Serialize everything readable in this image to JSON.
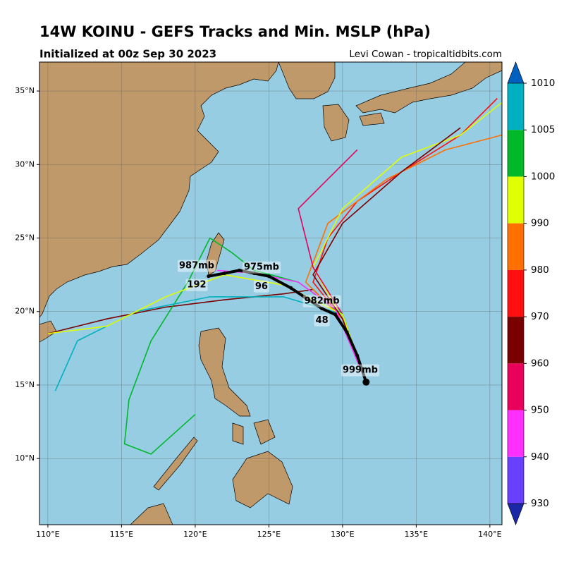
{
  "header": {
    "title": "14W KOINU - GEFS Tracks and Min. MSLP (hPa)",
    "subtitle": "Initialized at 00z Sep 30 2023",
    "credit": "Levi Cowan - tropicaltidbits.com"
  },
  "map": {
    "lonlim": [
      109.43,
      140.82
    ],
    "latlim": [
      5.5,
      36.97
    ],
    "xticks": [
      {
        "value": 110,
        "label": "110°E"
      },
      {
        "value": 115,
        "label": "115°E"
      },
      {
        "value": 120,
        "label": "120°E"
      },
      {
        "value": 125,
        "label": "125°E"
      },
      {
        "value": 130,
        "label": "130°E"
      },
      {
        "value": 135,
        "label": "135°E"
      },
      {
        "value": 140,
        "label": "140°E"
      }
    ],
    "yticks": [
      {
        "value": 10,
        "label": "10°N"
      },
      {
        "value": 15,
        "label": "15°N"
      },
      {
        "value": 20,
        "label": "20°N"
      },
      {
        "value": 25,
        "label": "25°N"
      },
      {
        "value": 30,
        "label": "30°N"
      },
      {
        "value": 35,
        "label": "35°N"
      }
    ],
    "main_track": {
      "color": "#000000",
      "lon": [
        131.6,
        131.0,
        130.3,
        129.5,
        128.6,
        127.4,
        126.5,
        125.0,
        124.0,
        123.0,
        122.0,
        120.9
      ],
      "lat": [
        15.2,
        17.0,
        18.6,
        19.8,
        20.2,
        21.0,
        21.6,
        22.4,
        22.6,
        22.8,
        22.6,
        22.4
      ]
    },
    "labels": [
      {
        "text": "999mb",
        "lon": 131.2,
        "lat": 16.0
      },
      {
        "text": "48",
        "lon": 128.6,
        "lat": 19.4
      },
      {
        "text": "982mb",
        "lon": 128.6,
        "lat": 20.7
      },
      {
        "text": "96",
        "lon": 124.5,
        "lat": 21.7
      },
      {
        "text": "975mb",
        "lon": 124.5,
        "lat": 23.0
      },
      {
        "text": "192",
        "lon": 120.1,
        "lat": 21.8
      },
      {
        "text": "987mb",
        "lon": 120.1,
        "lat": 23.1
      }
    ],
    "ensemble": [
      {
        "color": "#7a0000",
        "lon": [
          131.6,
          130.0,
          128.0,
          126.0,
          122.0,
          118.0,
          114.0,
          110.0
        ],
        "lat": [
          15.2,
          19.5,
          21.5,
          21.2,
          20.8,
          20.3,
          19.5,
          18.5
        ]
      },
      {
        "color": "#ff1010",
        "lon": [
          131.6,
          130.0,
          128.0,
          129.0,
          131.0,
          134.0,
          138.0,
          140.5
        ],
        "lat": [
          15.2,
          19.5,
          22.0,
          25.0,
          27.5,
          29.5,
          32.0,
          34.5
        ]
      },
      {
        "color": "#ff7000",
        "lon": [
          131.6,
          130.0,
          127.5,
          129.0,
          133.0,
          137.0,
          140.8
        ],
        "lat": [
          15.2,
          19.5,
          22.0,
          26.0,
          29.0,
          31.0,
          32.0
        ]
      },
      {
        "color": "#e0ff00",
        "lon": [
          131.6,
          130.0,
          128.0,
          130.0,
          134.0,
          138.0,
          140.8
        ],
        "lat": [
          15.2,
          19.5,
          23.0,
          27.0,
          30.5,
          32.0,
          34.2
        ]
      },
      {
        "color": "#e8005a",
        "lon": [
          131.6,
          130.0,
          128.0,
          127.0,
          129.0,
          131.0
        ],
        "lat": [
          15.2,
          19.8,
          23.0,
          27.0,
          29.0,
          31.0
        ]
      },
      {
        "color": "#00b82a",
        "lon": [
          131.6,
          130.0,
          127.0,
          124.0,
          122.5,
          121.0,
          119.5,
          117.0,
          115.5,
          115.2,
          117.0,
          120.0
        ],
        "lat": [
          15.2,
          19.8,
          22.0,
          22.8,
          24.0,
          25.0,
          22.0,
          18.0,
          14.0,
          11.0,
          10.3,
          13.0
        ]
      },
      {
        "color": "#00b0c0",
        "lon": [
          131.6,
          130.0,
          126.0,
          121.0,
          116.0,
          112.0,
          110.5
        ],
        "lat": [
          15.2,
          19.8,
          21.0,
          21.0,
          20.0,
          18.0,
          14.6
        ]
      },
      {
        "color": "#e0ff00",
        "lon": [
          131.6,
          130.0,
          126.0,
          122.0,
          118.0,
          114.0,
          110.0
        ],
        "lat": [
          15.2,
          19.8,
          21.8,
          22.5,
          21.0,
          19.0,
          18.5
        ]
      },
      {
        "color": "#ff30ff",
        "lon": [
          131.6,
          129.5,
          127.0,
          124.0,
          121.5
        ],
        "lat": [
          15.2,
          20.2,
          22.0,
          22.6,
          22.8
        ]
      },
      {
        "color": "#7a0000",
        "lon": [
          131.6,
          130.0,
          128.0,
          130.0,
          134.0,
          138.0
        ],
        "lat": [
          15.2,
          19.5,
          22.5,
          26.0,
          29.5,
          32.5
        ]
      }
    ]
  },
  "colorbar": {
    "ticks": [
      1010,
      1005,
      1000,
      990,
      980,
      970,
      960,
      950,
      940,
      930
    ],
    "colors": [
      "#00b0c0",
      "#00b82a",
      "#e0ff00",
      "#ff7000",
      "#ff1010",
      "#7a0000",
      "#e8005a",
      "#ff30ff",
      "#6a40ff"
    ],
    "over": "#0060c0",
    "under": "#1a28a8"
  }
}
